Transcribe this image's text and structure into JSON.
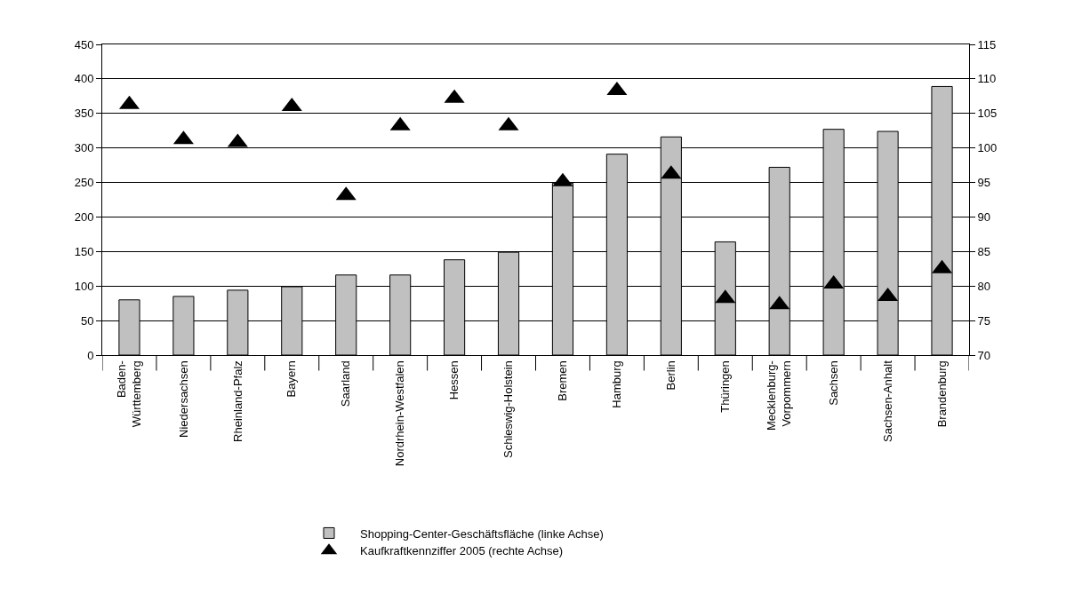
{
  "chart_data": {
    "type": "bar",
    "categories": [
      "Baden-\nWürttemberg",
      "Niedersachsen",
      "Rheinland-Pfalz",
      "Bayern",
      "Saarland",
      "Nordrhein-Westfalen",
      "Hessen",
      "Schleswig-Holstein",
      "Bremen",
      "Hamburg",
      "Berlin",
      "Thüringen",
      "Mecklenburg-\nVorpommern",
      "Sachsen",
      "Sachsen-Anhalt",
      "Brandenburg"
    ],
    "series": [
      {
        "name": "Shopping-Center-Geschäftsfläche (linke Achse)",
        "color": "#c0c0c0",
        "values": [
          80,
          85,
          94,
          99,
          116,
          116,
          138,
          149,
          249,
          291,
          316,
          164,
          272,
          327,
          324,
          389
        ]
      },
      {
        "name": "Kaufkraftkennziffer 2005 (rechte Achse)",
        "type": "scatter",
        "axis": "y2",
        "color": "#000000",
        "marker": "triangle",
        "values": [
          106.3,
          101.2,
          100.8,
          106.0,
          93.1,
          103.2,
          107.2,
          103.2,
          95.1,
          108.3,
          96.2,
          78.2,
          77.3,
          80.3,
          78.5,
          82.5
        ]
      }
    ],
    "ylim": [
      0,
      450
    ],
    "yticks": [
      0,
      50,
      100,
      150,
      200,
      250,
      300,
      350,
      400,
      450
    ],
    "y2lim": [
      70,
      115
    ],
    "y2ticks": [
      70,
      75,
      80,
      85,
      90,
      95,
      100,
      105,
      110,
      115
    ],
    "grid": "y",
    "legend": "bottom"
  }
}
